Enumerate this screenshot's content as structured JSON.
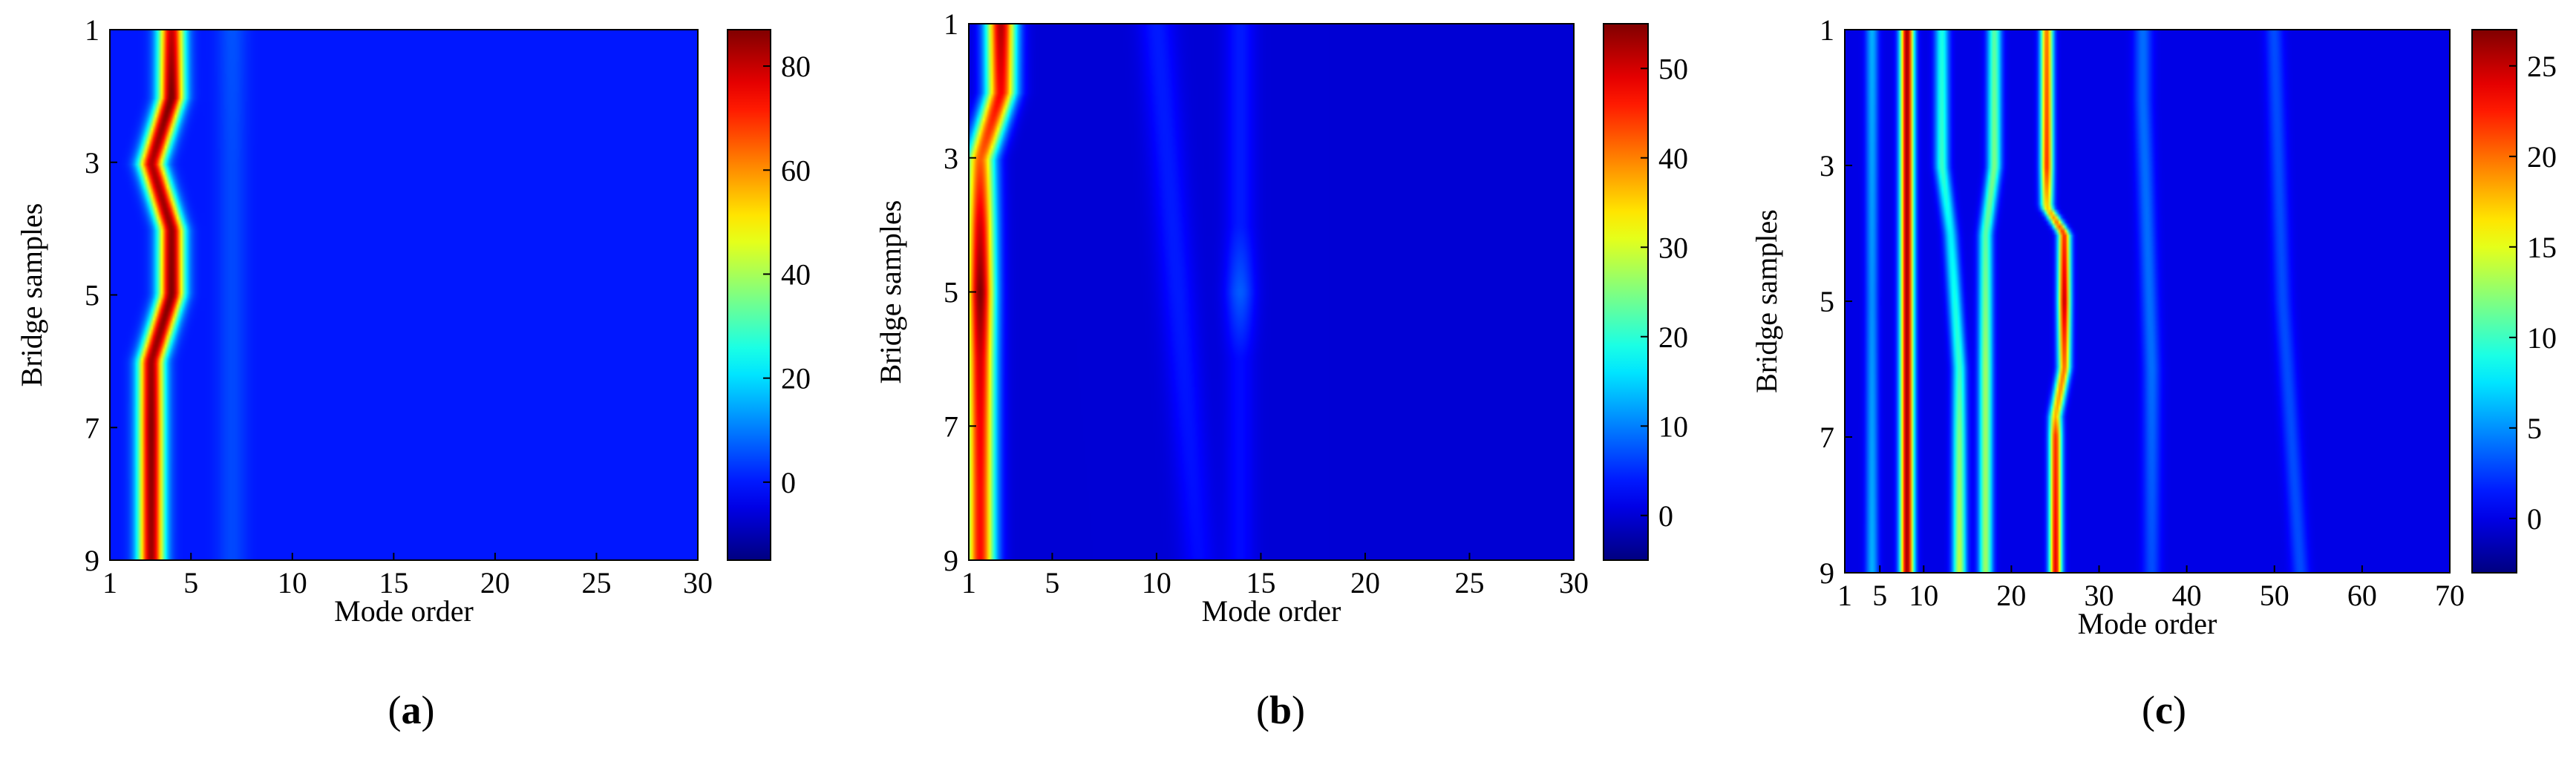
{
  "figure": {
    "panels": [
      {
        "label": "(a)",
        "label_letter": "a"
      },
      {
        "label": "(b)",
        "label_letter": "b"
      },
      {
        "label": "(c)",
        "label_letter": "c"
      }
    ]
  },
  "chart_data": [
    {
      "type": "heatmap",
      "panel": "a",
      "xlabel": "Mode order",
      "ylabel": "Bridge samples",
      "xlim": [
        1,
        30
      ],
      "ylim": [
        1,
        9
      ],
      "y_reversed": true,
      "xticks": [
        1,
        5,
        10,
        15,
        20,
        25,
        30
      ],
      "yticks": [
        1,
        3,
        5,
        7,
        9
      ],
      "colorbar": {
        "min": -15,
        "max": 87,
        "ticks": [
          0,
          20,
          40,
          60,
          80
        ],
        "colormap": "jet"
      },
      "background_value": 0,
      "ridges": [
        {
          "name": "",
          "values": [
            [
              1,
              4,
              80
            ],
            [
              2,
              4,
              88
            ],
            [
              3,
              3,
              82
            ],
            [
              4,
              4,
              85
            ],
            [
              5,
              4,
              87
            ],
            [
              6,
              3,
              84
            ],
            [
              7,
              3,
              86
            ],
            [
              8,
              3,
              85
            ],
            [
              9,
              3,
              84
            ]
          ],
          "width": 0.45
        },
        {
          "name": "",
          "values": [
            [
              1,
              7,
              6
            ],
            [
              3,
              7,
              5
            ],
            [
              5,
              7,
              5
            ],
            [
              7,
              7,
              5
            ],
            [
              9,
              7,
              5
            ]
          ],
          "width": 0.5
        }
      ]
    },
    {
      "type": "heatmap",
      "panel": "b",
      "xlabel": "Mode order",
      "ylabel": "Bridge samples",
      "xlim": [
        1,
        30
      ],
      "ylim": [
        1,
        9
      ],
      "y_reversed": true,
      "xticks": [
        1,
        5,
        10,
        15,
        20,
        25,
        30
      ],
      "yticks": [
        1,
        3,
        5,
        7,
        9
      ],
      "colorbar": {
        "min": -5,
        "max": 55,
        "ticks": [
          0,
          10,
          20,
          30,
          40,
          50
        ],
        "colormap": "jet"
      },
      "background_value": 0,
      "ridges": [
        {
          "name": "",
          "values": [
            [
              1,
              2.5,
              52
            ],
            [
              2,
              2.5,
              48
            ],
            [
              3,
              1.5,
              42
            ],
            [
              4,
              1.5,
              50
            ],
            [
              5,
              1.5,
              55
            ],
            [
              6,
              1.5,
              50
            ],
            [
              7,
              1.5,
              48
            ],
            [
              8,
              1.5,
              47
            ],
            [
              9,
              1.5,
              47
            ]
          ],
          "width": 0.5
        },
        {
          "name": "",
          "values": [
            [
              1,
              10,
              4
            ],
            [
              5,
              11,
              4
            ],
            [
              9,
              12,
              3
            ]
          ],
          "width": 0.6
        },
        {
          "name": "",
          "values": [
            [
              4,
              14,
              4
            ],
            [
              5,
              14,
              8
            ],
            [
              6,
              14,
              3
            ]
          ],
          "width": 0.5
        }
      ]
    },
    {
      "type": "heatmap",
      "panel": "c",
      "xlabel": "Mode order",
      "ylabel": "Bridge samples",
      "xlim": [
        1,
        70
      ],
      "ylim": [
        1,
        9
      ],
      "y_reversed": true,
      "xticks": [
        1,
        5,
        10,
        20,
        30,
        40,
        50,
        60,
        70
      ],
      "yticks": [
        1,
        3,
        5,
        7,
        9
      ],
      "colorbar": {
        "min": -3,
        "max": 27,
        "ticks": [
          0,
          5,
          10,
          15,
          20,
          25
        ],
        "colormap": "jet"
      },
      "background_value": 0,
      "ridges": [
        {
          "name": "",
          "values": [
            [
              1,
              8,
              26
            ],
            [
              3,
              8,
              26
            ],
            [
              5,
              8,
              26
            ],
            [
              7,
              8,
              26
            ],
            [
              9,
              8,
              26
            ]
          ],
          "width": 0.55
        },
        {
          "name": "",
          "values": [
            [
              1,
              12,
              9
            ],
            [
              3,
              12,
              10
            ],
            [
              4,
              13,
              8
            ],
            [
              6,
              14,
              10
            ],
            [
              7,
              14,
              12
            ],
            [
              9,
              14,
              14
            ]
          ],
          "width": 0.55
        },
        {
          "name": "",
          "values": [
            [
              1,
              18,
              11
            ],
            [
              3,
              18,
              12
            ],
            [
              4,
              17,
              11
            ],
            [
              6,
              17,
              13
            ],
            [
              7,
              17,
              13
            ],
            [
              9,
              17,
              13
            ]
          ],
          "width": 0.55
        },
        {
          "name": "",
          "values": [
            [
              1,
              24,
              20
            ],
            [
              3,
              24,
              22
            ],
            [
              3.6,
              24,
              17
            ],
            [
              4,
              26,
              22
            ],
            [
              5,
              26,
              25
            ],
            [
              6,
              26,
              20
            ],
            [
              6.7,
              25,
              18
            ],
            [
              7,
              25,
              22
            ],
            [
              9,
              25,
              24
            ]
          ],
          "width": 0.5
        },
        {
          "name": "",
          "values": [
            [
              1,
              4,
              6
            ],
            [
              5,
              4,
              5
            ],
            [
              9,
              4,
              6
            ]
          ],
          "width": 0.5
        },
        {
          "name": "",
          "values": [
            [
              2,
              35,
              4
            ],
            [
              6,
              36,
              4
            ],
            [
              9,
              36,
              3
            ]
          ],
          "width": 0.7
        },
        {
          "name": "",
          "values": [
            [
              1,
              50,
              3
            ],
            [
              5,
              51,
              3
            ],
            [
              9,
              53,
              3
            ]
          ],
          "width": 0.7
        }
      ]
    }
  ]
}
